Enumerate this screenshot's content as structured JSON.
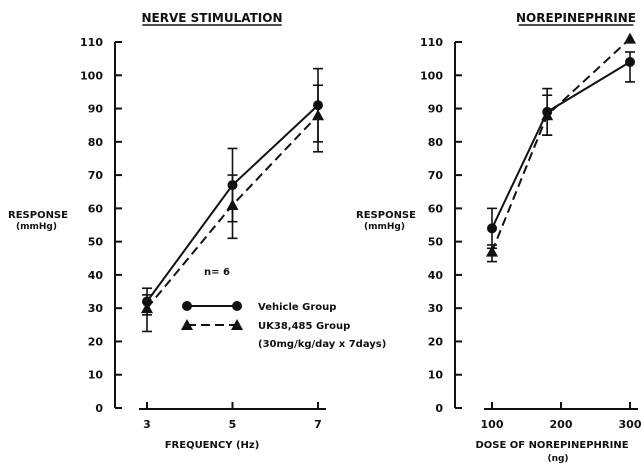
{
  "chart_data": [
    {
      "type": "line",
      "title": "NERVE STIMULATION",
      "xlabel": "FREQUENCY (Hz)",
      "ylabel_line1": "RESPONSE",
      "ylabel_line2": "(mmHg)",
      "ylim": [
        0,
        110
      ],
      "yticks": [
        "0",
        "10",
        "20",
        "30",
        "40",
        "50",
        "60",
        "70",
        "80",
        "90",
        "100",
        "110"
      ],
      "x": [
        "3",
        "5",
        "7"
      ],
      "annotation": "n= 6",
      "series": [
        {
          "name": "Vehicle Group",
          "values": [
            32,
            67,
            91
          ],
          "err_upper": [
            4,
            11,
            11
          ],
          "err_lower": [
            4,
            11,
            11
          ],
          "marker": "circle",
          "dash": "solid"
        },
        {
          "name": "UK38,485 Group",
          "name_line2": "(30mg/kg/day x 7days)",
          "values": [
            30,
            61,
            88
          ],
          "err_upper": [
            4,
            9,
            9
          ],
          "err_lower": [
            7,
            10,
            11
          ],
          "marker": "triangle",
          "dash": "dashed"
        }
      ]
    },
    {
      "type": "line",
      "title": "NOREPINEPHRINE",
      "xlabel_line1": "DOSE OF NOREPINEPHRINE",
      "xlabel_line2": "(ng)",
      "ylabel_line1": "RESPONSE",
      "ylabel_line2": "(mmHg)",
      "ylim": [
        0,
        110
      ],
      "yticks": [
        "0",
        "10",
        "20",
        "30",
        "40",
        "50",
        "60",
        "70",
        "80",
        "90",
        "100",
        "110"
      ],
      "x": [
        100,
        180,
        300
      ],
      "xticks": [
        "100",
        "200",
        "300"
      ],
      "xtick_values": [
        100,
        200,
        300
      ],
      "series": [
        {
          "name": "Vehicle Group",
          "values": [
            54,
            89,
            104
          ],
          "err_upper": [
            6,
            7,
            3
          ],
          "err_lower": [
            6,
            7,
            6
          ],
          "marker": "circle",
          "dash": "solid"
        },
        {
          "name": "UK38,485 Group",
          "values": [
            47,
            88,
            111
          ],
          "err_upper": [
            2,
            6,
            0
          ],
          "err_lower": [
            3,
            6,
            0
          ],
          "marker": "triangle",
          "dash": "dashed"
        }
      ]
    }
  ]
}
